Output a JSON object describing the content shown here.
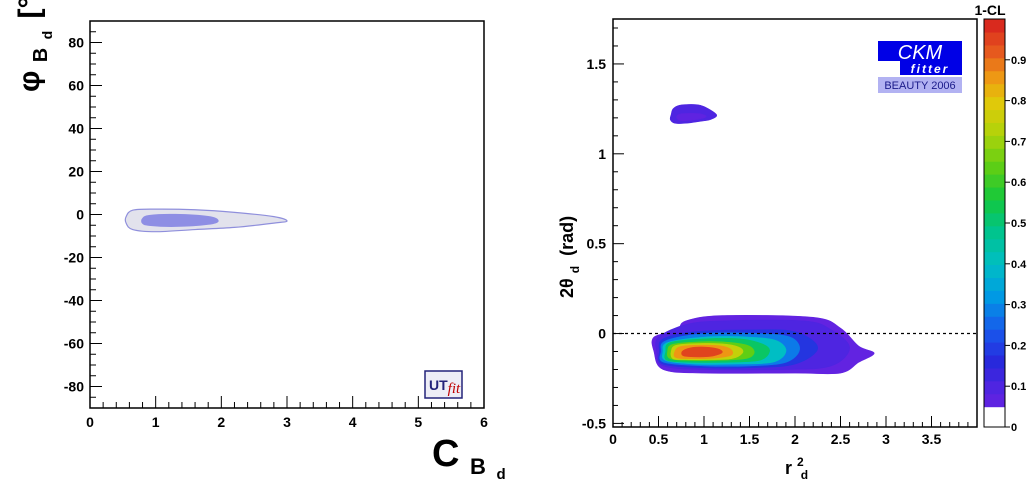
{
  "chart_data": [
    {
      "type": "contour",
      "xlim": [
        0,
        6
      ],
      "ylim": [
        -90,
        90
      ],
      "xticks": [
        0,
        1,
        2,
        3,
        4,
        5,
        6
      ],
      "yticks": [
        -80,
        -60,
        -40,
        -20,
        0,
        20,
        40,
        60,
        80
      ],
      "xlabel": {
        "main": "C",
        "sub": "B",
        "subsub": "d"
      },
      "ylabel": {
        "main": "φ",
        "sub": "B",
        "subsub": "d",
        "unit": "[°]"
      },
      "regions": [
        {
          "name": "",
          "color": "#e2e2ec",
          "stroke": "#8f8fdc",
          "outline": [
            [
              0.55,
              -1
            ],
            [
              0.65,
              2
            ],
            [
              1.0,
              2.5
            ],
            [
              1.6,
              2.2
            ],
            [
              2.2,
              1
            ],
            [
              2.8,
              -1
            ],
            [
              3.0,
              -3
            ],
            [
              2.8,
              -4
            ],
            [
              2.2,
              -6
            ],
            [
              1.6,
              -7
            ],
            [
              1.0,
              -8
            ],
            [
              0.65,
              -7
            ],
            [
              0.55,
              -4
            ]
          ]
        },
        {
          "name": "",
          "color": "#8e8ee4",
          "stroke": "#8e8ee4",
          "outline": [
            [
              0.8,
              -2
            ],
            [
              0.9,
              -0.5
            ],
            [
              1.3,
              0
            ],
            [
              1.8,
              -1
            ],
            [
              1.95,
              -3
            ],
            [
              1.8,
              -4.5
            ],
            [
              1.3,
              -5.5
            ],
            [
              0.9,
              -5
            ],
            [
              0.8,
              -4
            ]
          ]
        }
      ],
      "logo": {
        "part1": "UT",
        "part2": "fit",
        "color1": "#23237a",
        "color2": "#c00000"
      }
    },
    {
      "type": "heatmap",
      "xlim": [
        0,
        4
      ],
      "ylim": [
        -0.52,
        1.75
      ],
      "xticks": [
        0,
        0.5,
        1,
        1.5,
        2,
        2.5,
        3,
        3.5
      ],
      "yticks": [
        -0.5,
        0,
        0.5,
        1,
        1.5
      ],
      "xtick_labels": [
        "0",
        "0.5",
        "1",
        "1.5",
        "2",
        "2.5",
        "3",
        "3.5"
      ],
      "ytick_labels": [
        "-0.5",
        "0",
        "0.5",
        "1",
        "1.5"
      ],
      "xlabel": {
        "main": "r",
        "sup": "2",
        "sub": "d"
      },
      "ylabel": {
        "main": "2θ",
        "sub": "d",
        "unit": "(rad)"
      },
      "reference_line_y": 0,
      "colorbar": {
        "title": "1-CL",
        "range": [
          0,
          1
        ],
        "ticks": [
          0,
          0.1,
          0.2,
          0.3,
          0.4,
          0.5,
          0.6,
          0.7,
          0.8,
          0.9
        ],
        "tick_labels": [
          "0",
          "0.1",
          "0.2",
          "0.3",
          "0.4",
          "0.5",
          "0.6",
          "0.7",
          "0.8",
          "0.9"
        ],
        "bottom_white_fraction": 0.05
      },
      "regions": [
        {
          "level": 0.05,
          "outline": [
            [
              0.55,
              -0.2
            ],
            [
              0.45,
              -0.1
            ],
            [
              0.45,
              -0.02
            ],
            [
              0.7,
              0.02
            ],
            [
              0.8,
              0.07
            ],
            [
              1.2,
              0.1
            ],
            [
              2.2,
              0.09
            ],
            [
              2.5,
              0.03
            ],
            [
              2.7,
              -0.07
            ],
            [
              2.87,
              -0.11
            ],
            [
              2.7,
              -0.16
            ],
            [
              2.5,
              -0.22
            ],
            [
              2.0,
              -0.22
            ],
            [
              1.0,
              -0.22
            ]
          ]
        },
        {
          "level": 0.1,
          "outline": [
            [
              0.55,
              -0.18
            ],
            [
              0.48,
              -0.1
            ],
            [
              0.5,
              -0.02
            ],
            [
              0.8,
              0.05
            ],
            [
              1.2,
              0.07
            ],
            [
              2.1,
              0.07
            ],
            [
              2.4,
              0.02
            ],
            [
              2.6,
              -0.08
            ],
            [
              2.4,
              -0.18
            ],
            [
              1.9,
              -0.2
            ],
            [
              1.0,
              -0.2
            ]
          ]
        },
        {
          "level": 0.18,
          "outline": [
            [
              0.55,
              -0.17
            ],
            [
              0.51,
              -0.1
            ],
            [
              0.55,
              -0.03
            ],
            [
              0.9,
              0.01
            ],
            [
              1.5,
              0.02
            ],
            [
              2.0,
              0.01
            ],
            [
              2.25,
              -0.08
            ],
            [
              2.0,
              -0.17
            ],
            [
              1.5,
              -0.19
            ],
            [
              1.0,
              -0.19
            ]
          ]
        },
        {
          "level": 0.28,
          "outline": [
            [
              0.56,
              -0.16
            ],
            [
              0.53,
              -0.1
            ],
            [
              0.58,
              -0.04
            ],
            [
              1.0,
              0.0
            ],
            [
              1.6,
              0.0
            ],
            [
              1.95,
              -0.02
            ],
            [
              2.05,
              -0.09
            ],
            [
              1.9,
              -0.16
            ],
            [
              1.5,
              -0.18
            ],
            [
              1.0,
              -0.18
            ]
          ]
        },
        {
          "level": 0.4,
          "outline": [
            [
              0.58,
              -0.15
            ],
            [
              0.55,
              -0.1
            ],
            [
              0.6,
              -0.05
            ],
            [
              1.0,
              -0.02
            ],
            [
              1.5,
              -0.02
            ],
            [
              1.8,
              -0.04
            ],
            [
              1.9,
              -0.1
            ],
            [
              1.75,
              -0.16
            ],
            [
              1.3,
              -0.17
            ],
            [
              0.9,
              -0.17
            ]
          ]
        },
        {
          "level": 0.52,
          "outline": [
            [
              0.6,
              -0.15
            ],
            [
              0.58,
              -0.1
            ],
            [
              0.63,
              -0.05
            ],
            [
              1.0,
              -0.03
            ],
            [
              1.4,
              -0.03
            ],
            [
              1.65,
              -0.06
            ],
            [
              1.72,
              -0.1
            ],
            [
              1.6,
              -0.15
            ],
            [
              1.2,
              -0.16
            ],
            [
              0.9,
              -0.16
            ]
          ]
        },
        {
          "level": 0.64,
          "outline": [
            [
              0.63,
              -0.14
            ],
            [
              0.6,
              -0.1
            ],
            [
              0.66,
              -0.06
            ],
            [
              1.0,
              -0.045
            ],
            [
              1.3,
              -0.05
            ],
            [
              1.5,
              -0.07
            ],
            [
              1.55,
              -0.11
            ],
            [
              1.45,
              -0.14
            ],
            [
              1.1,
              -0.15
            ],
            [
              0.85,
              -0.15
            ]
          ]
        },
        {
          "level": 0.75,
          "outline": [
            [
              0.66,
              -0.14
            ],
            [
              0.64,
              -0.1
            ],
            [
              0.7,
              -0.065
            ],
            [
              1.0,
              -0.055
            ],
            [
              1.25,
              -0.06
            ],
            [
              1.4,
              -0.08
            ],
            [
              1.42,
              -0.11
            ],
            [
              1.3,
              -0.14
            ],
            [
              1.0,
              -0.145
            ],
            [
              0.8,
              -0.145
            ]
          ]
        },
        {
          "level": 0.86,
          "outline": [
            [
              0.7,
              -0.135
            ],
            [
              0.68,
              -0.1
            ],
            [
              0.75,
              -0.072
            ],
            [
              1.0,
              -0.065
            ],
            [
              1.2,
              -0.07
            ],
            [
              1.3,
              -0.09
            ],
            [
              1.3,
              -0.12
            ],
            [
              1.15,
              -0.135
            ],
            [
              0.95,
              -0.14
            ]
          ]
        },
        {
          "level": 0.95,
          "outline": [
            [
              0.78,
              -0.125
            ],
            [
              0.76,
              -0.1
            ],
            [
              0.85,
              -0.08
            ],
            [
              1.0,
              -0.075
            ],
            [
              1.15,
              -0.085
            ],
            [
              1.2,
              -0.105
            ],
            [
              1.1,
              -0.125
            ],
            [
              0.95,
              -0.13
            ]
          ]
        },
        {
          "level": 0.1,
          "outline": [
            [
              0.64,
              1.22
            ],
            [
              0.66,
              1.25
            ],
            [
              0.73,
              1.27
            ],
            [
              0.86,
              1.275
            ],
            [
              0.96,
              1.27
            ],
            [
              1.05,
              1.25
            ],
            [
              1.14,
              1.215
            ],
            [
              1.07,
              1.19
            ],
            [
              0.95,
              1.18
            ],
            [
              0.8,
              1.17
            ],
            [
              0.68,
              1.17
            ],
            [
              0.63,
              1.19
            ]
          ]
        },
        {
          "level": 0.06,
          "outline": [
            [
              0.7,
              1.2
            ],
            [
              0.73,
              1.22
            ],
            [
              0.86,
              1.225
            ],
            [
              0.98,
              1.22
            ],
            [
              1.02,
              1.205
            ],
            [
              0.9,
              1.19
            ],
            [
              0.75,
              1.185
            ]
          ]
        }
      ],
      "logo": {
        "line1": "CKM",
        "line2": "fitter",
        "line3": "BEAUTY 2006",
        "bg": "#0000e6",
        "sub_bg": "#b2b2f2"
      }
    }
  ]
}
